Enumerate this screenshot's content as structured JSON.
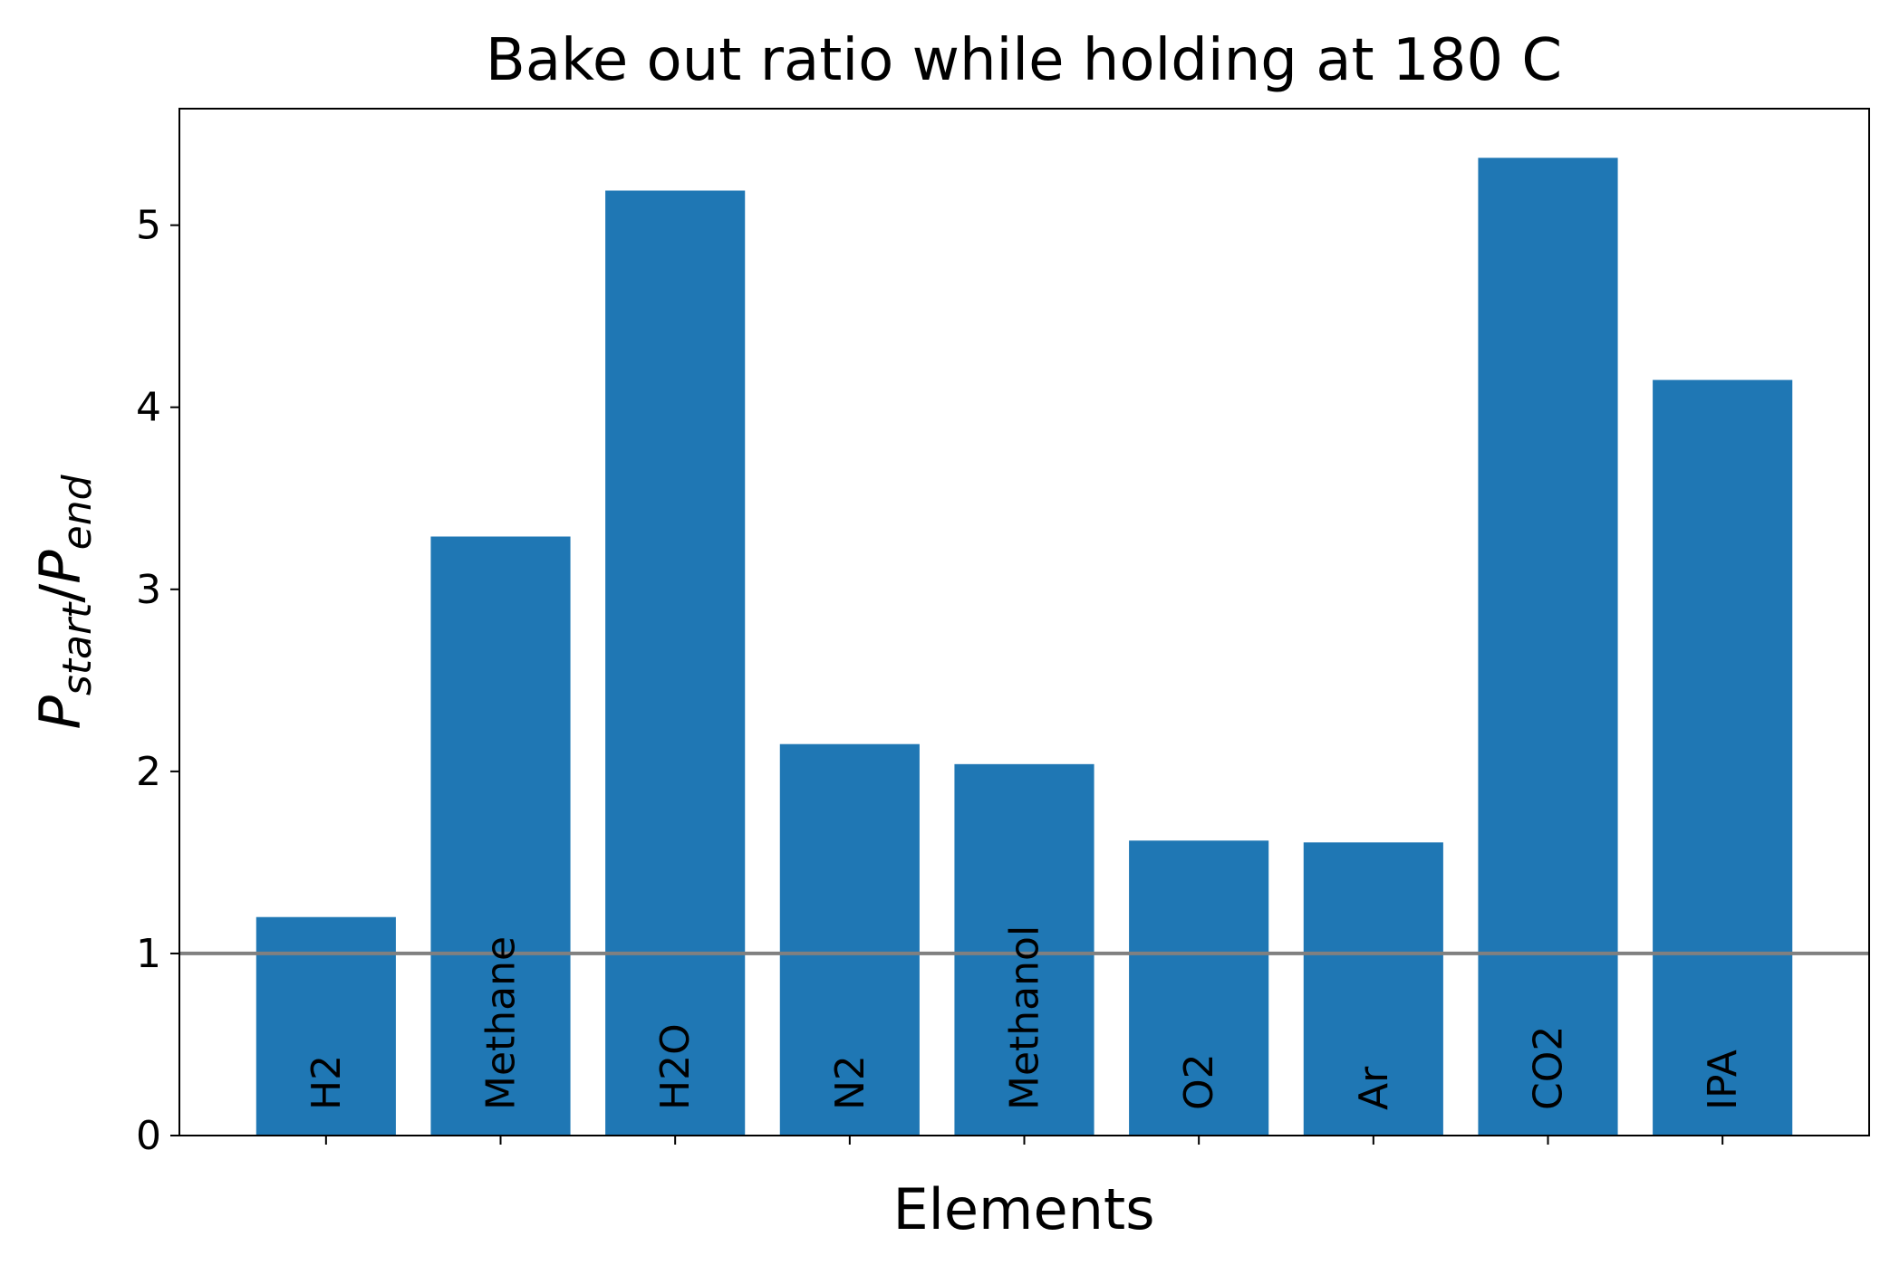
{
  "chart_data": {
    "type": "bar",
    "title": "Bake out ratio while holding at 180 C",
    "xlabel": "Elements",
    "ylabel": {
      "base": "P",
      "sub1": "start",
      "sep": "/",
      "base2": "P",
      "sub2": "end"
    },
    "categories": [
      "H2",
      "Methane",
      "H2O",
      "N2",
      "Methanol",
      "O2",
      "Ar",
      "CO2",
      "IPA"
    ],
    "values": [
      1.2,
      3.29,
      5.19,
      2.15,
      2.04,
      1.62,
      1.61,
      5.37,
      4.15
    ],
    "ylim": [
      0,
      5.64
    ],
    "yticks": [
      0,
      1,
      2,
      3,
      4,
      5
    ],
    "reference_line": 1,
    "grid": false,
    "colors": {
      "bar": "#1f77b4",
      "reference_line": "#808080",
      "axes": "#000000"
    }
  }
}
